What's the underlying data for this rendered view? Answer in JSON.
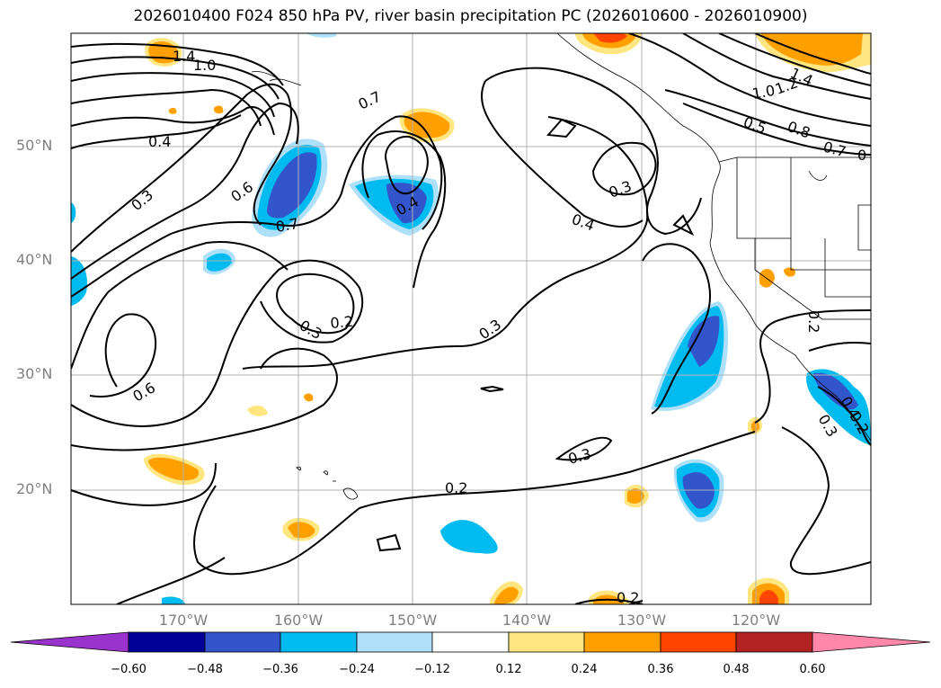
{
  "title": "2026010400 F024 850 hPa PV, river basin precipitation PC (2026010600 - 2026010900)",
  "lat_labels": [
    "50°N",
    "40°N",
    "30°N",
    "20°N"
  ],
  "lon_labels": [
    "170°W",
    "160°W",
    "150°W",
    "140°W",
    "130°W",
    "120°W"
  ],
  "contour_labels": [
    "1.4",
    "1.0",
    "0.7",
    "0.4",
    "0.3",
    "0.6",
    "0.7",
    "0.4",
    "0.3",
    "0.2",
    "0.3",
    "0.6",
    "0.4",
    "0.3",
    "0.3",
    "0.2",
    "0.2",
    "1.4",
    "1.2",
    "1.0",
    "0.5",
    "0.8",
    "0.7",
    "0",
    "0.2",
    "0.4",
    "0.3",
    "0.2"
  ],
  "colorbar": {
    "ticks": [
      "−0.60",
      "−0.48",
      "−0.36",
      "−0.24",
      "−0.12",
      "0.12",
      "0.24",
      "0.36",
      "0.48",
      "0.60"
    ],
    "colors": [
      "#9933cc",
      "#000099",
      "#3355cc",
      "#00bbf0",
      "#aee0fa",
      "#ffffff",
      "#ffe680",
      "#ffa000",
      "#ff4500",
      "#b22222",
      "#ff88aa"
    ]
  },
  "colors": {
    "neg_light": "#aee0fa",
    "neg_mid": "#00bbf0",
    "neg_strong": "#3355cc",
    "pos_light": "#ffe680",
    "pos_mid": "#ffa000",
    "pos_strong": "#ff4500"
  }
}
